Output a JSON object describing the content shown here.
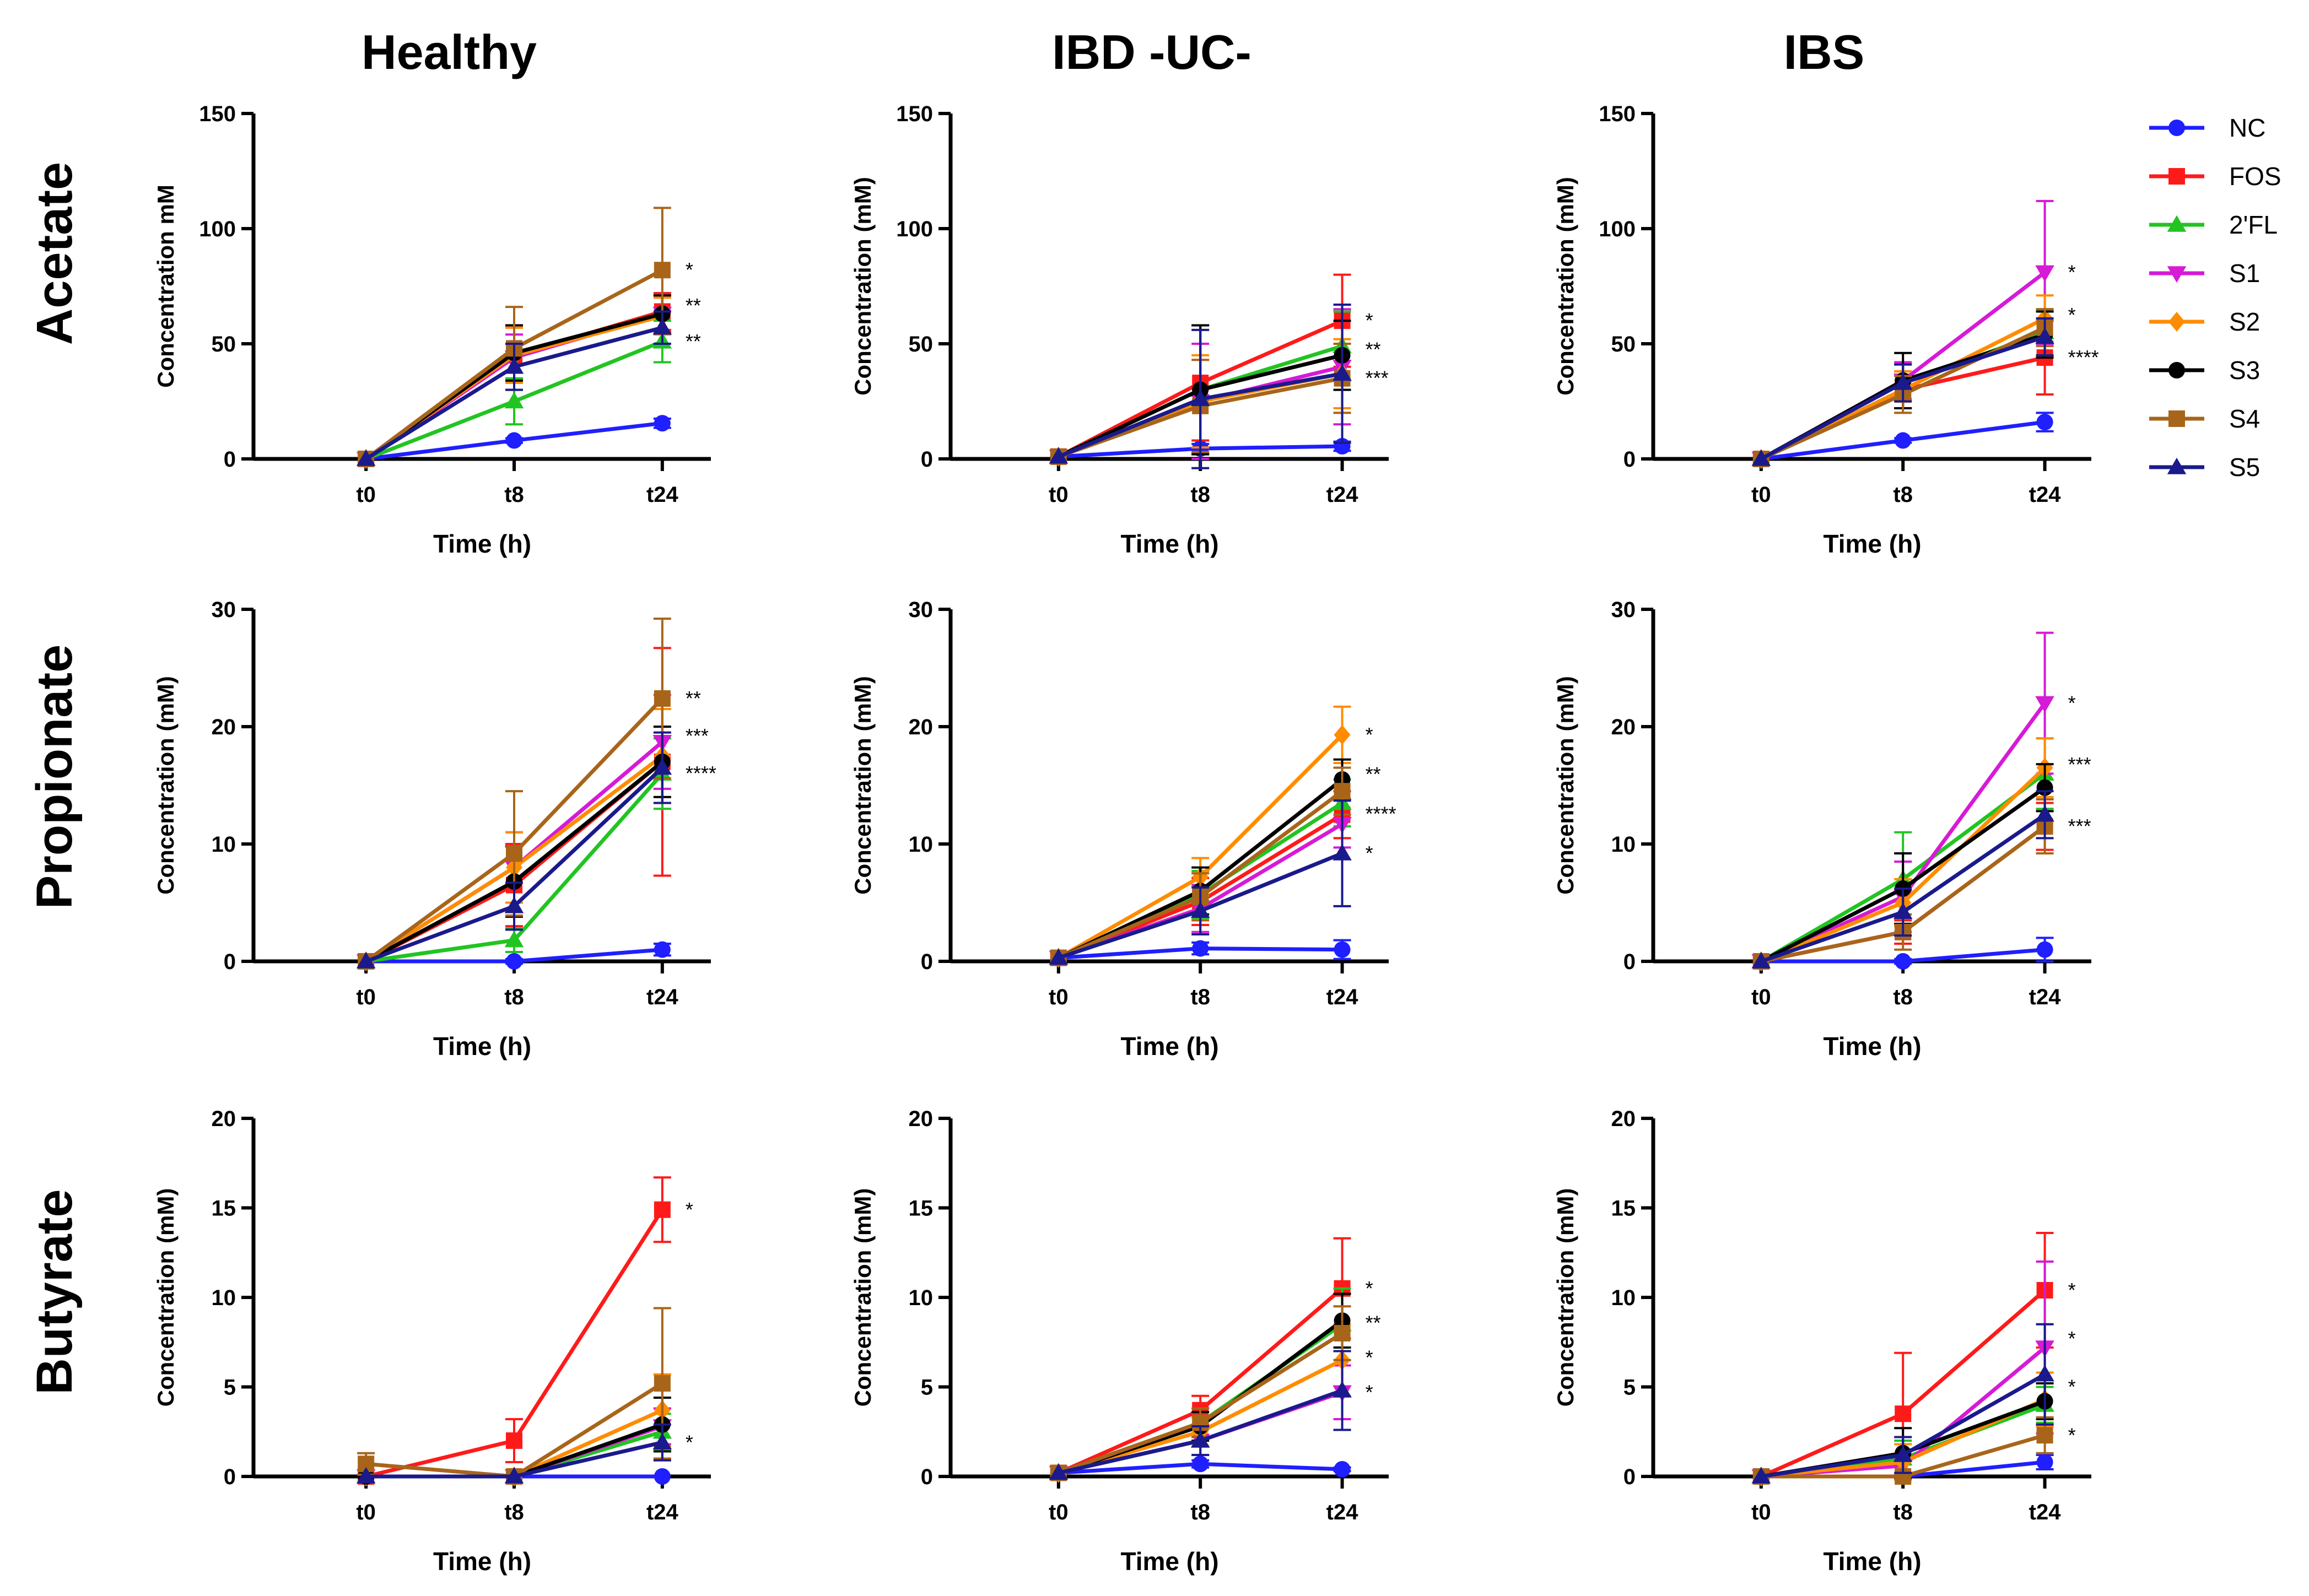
{
  "chart_data": {
    "type": "line",
    "columns": [
      "Healthy",
      "IBD -UC-",
      "IBS"
    ],
    "rows": [
      "Acetate",
      "Propionate",
      "Butyrate"
    ],
    "categories": [
      "t0",
      "t8",
      "t24"
    ],
    "xlabel": "Time (h)",
    "legend": {
      "placement": "right",
      "entries": [
        {
          "name": "NC",
          "color": "#1f1fff",
          "marker": "circle"
        },
        {
          "name": "FOS",
          "color": "#ff1a1a",
          "marker": "square"
        },
        {
          "name": "2'FL",
          "color": "#22c422",
          "marker": "triangle-up"
        },
        {
          "name": "S1",
          "color": "#d61ad6",
          "marker": "triangle-down"
        },
        {
          "name": "S2",
          "color": "#ff8c00",
          "marker": "diamond"
        },
        {
          "name": "S3",
          "color": "#000000",
          "marker": "circle"
        },
        {
          "name": "S4",
          "color": "#a8651a",
          "marker": "square"
        },
        {
          "name": "S5",
          "color": "#1a1a8c",
          "marker": "triangle-up"
        }
      ]
    },
    "panels": [
      {
        "row": 0,
        "col": 0,
        "ylabel": "Concentration mM",
        "ylim": [
          0,
          150
        ],
        "yticks": [
          0,
          50,
          100,
          150
        ],
        "series": {
          "NC": [
            0,
            8,
            15.5
          ],
          "FOS": [
            0,
            45,
            64
          ],
          "2'FL": [
            0,
            25,
            51
          ],
          "S1": [
            0,
            44,
            63
          ],
          "S2": [
            0,
            45,
            62
          ],
          "S3": [
            0,
            46,
            63
          ],
          "S4": [
            0,
            48,
            82
          ],
          "S5": [
            0,
            40,
            57
          ]
        },
        "errors": {
          "NC": [
            0,
            1,
            2
          ],
          "FOS": [
            0,
            12,
            8
          ],
          "2'FL": [
            0,
            10,
            9
          ],
          "S1": [
            0,
            10,
            8
          ],
          "S2": [
            0,
            12,
            8
          ],
          "S3": [
            0,
            12,
            8
          ],
          "S4": [
            0,
            18,
            27
          ],
          "S5": [
            0,
            10,
            7
          ]
        },
        "stars": [
          "*",
          "**",
          "**"
        ]
      },
      {
        "row": 0,
        "col": 1,
        "ylabel": "Concentration (mM)",
        "ylim": [
          0,
          150
        ],
        "yticks": [
          0,
          50,
          100,
          150
        ],
        "series": {
          "NC": [
            1,
            4.5,
            5.5
          ],
          "FOS": [
            1,
            33,
            60
          ],
          "2'FL": [
            1,
            30,
            49
          ],
          "S1": [
            1,
            25,
            40
          ],
          "S2": [
            1,
            25,
            37
          ],
          "S3": [
            1,
            30,
            45
          ],
          "S4": [
            1,
            23,
            35
          ],
          "S5": [
            1,
            26,
            37
          ]
        },
        "errors": {
          "NC": [
            0,
            2,
            2
          ],
          "FOS": [
            0,
            25,
            20
          ],
          "2'FL": [
            0,
            28,
            15
          ],
          "S1": [
            0,
            25,
            25
          ],
          "S2": [
            0,
            20,
            15
          ],
          "S3": [
            0,
            28,
            15
          ],
          "S4": [
            0,
            20,
            15
          ],
          "S5": [
            0,
            30,
            30
          ]
        },
        "stars": [
          "*",
          "**",
          "***"
        ]
      },
      {
        "row": 0,
        "col": 2,
        "ylabel": "Concentration (mM)",
        "ylim": [
          0,
          150
        ],
        "yticks": [
          0,
          50,
          100,
          150
        ],
        "series": {
          "NC": [
            0,
            8,
            16
          ],
          "FOS": [
            0,
            30,
            44
          ],
          "2'FL": [
            0,
            33,
            55
          ],
          "S1": [
            0,
            34,
            81
          ],
          "S2": [
            0,
            30,
            61
          ],
          "S3": [
            0,
            34,
            54
          ],
          "S4": [
            0,
            28,
            57
          ],
          "S5": [
            0,
            33,
            53
          ]
        },
        "errors": {
          "NC": [
            0,
            1,
            4
          ],
          "FOS": [
            0,
            8,
            16
          ],
          "2'FL": [
            0,
            8,
            10
          ],
          "S1": [
            0,
            8,
            31
          ],
          "S2": [
            0,
            8,
            10
          ],
          "S3": [
            0,
            12,
            10
          ],
          "S4": [
            0,
            8,
            8
          ],
          "S5": [
            0,
            8,
            8
          ]
        },
        "stars": [
          "*",
          "*",
          "****"
        ]
      },
      {
        "row": 1,
        "col": 0,
        "ylabel": "Concentration (mM)",
        "ylim": [
          0,
          30
        ],
        "yticks": [
          0,
          10,
          20,
          30
        ],
        "series": {
          "NC": [
            0,
            0,
            1
          ],
          "FOS": [
            0,
            6.5,
            17
          ],
          "2'FL": [
            0,
            1.8,
            16
          ],
          "S1": [
            0,
            8,
            18.7
          ],
          "S2": [
            0,
            8,
            17.5
          ],
          "S3": [
            0,
            6.8,
            17
          ],
          "S4": [
            0,
            9.2,
            22.4
          ],
          "S5": [
            0,
            4.7,
            16.5
          ]
        },
        "errors": {
          "NC": [
            0,
            0.2,
            0.5
          ],
          "FOS": [
            0,
            3.5,
            9.7
          ],
          "2'FL": [
            0,
            1,
            3
          ],
          "S1": [
            0,
            3,
            4
          ],
          "S2": [
            0,
            3,
            4
          ],
          "S3": [
            0,
            3,
            3
          ],
          "S4": [
            0,
            5.3,
            6.8
          ],
          "S5": [
            0,
            2,
            3
          ]
        },
        "stars": [
          "**",
          "***",
          "****"
        ]
      },
      {
        "row": 1,
        "col": 1,
        "ylabel": "Concentration (mM)",
        "ylim": [
          0,
          30
        ],
        "yticks": [
          0,
          10,
          20,
          30
        ],
        "series": {
          "NC": [
            0.3,
            1.1,
            1.0
          ],
          "FOS": [
            0.3,
            5.1,
            12.5
          ],
          "2'FL": [
            0.3,
            5.7,
            13.5
          ],
          "S1": [
            0.3,
            4.5,
            11.7
          ],
          "S2": [
            0.3,
            7.2,
            19.3
          ],
          "S3": [
            0.3,
            6.0,
            15.5
          ],
          "S4": [
            0.3,
            5.5,
            14.5
          ],
          "S5": [
            0.3,
            4.3,
            9.2
          ]
        },
        "errors": {
          "NC": [
            0,
            0.5,
            0.8
          ],
          "FOS": [
            0,
            2,
            2
          ],
          "2'FL": [
            0,
            2,
            2
          ],
          "S1": [
            0,
            2,
            2
          ],
          "S2": [
            0,
            1.6,
            2.4
          ],
          "S3": [
            0,
            2,
            1.7
          ],
          "S4": [
            0,
            2,
            2
          ],
          "S5": [
            0,
            2,
            4.5
          ]
        },
        "stars": [
          "*",
          "**",
          "****",
          "*"
        ]
      },
      {
        "row": 1,
        "col": 2,
        "ylabel": "Concentration (mM)",
        "ylim": [
          0,
          30
        ],
        "yticks": [
          0,
          10,
          20,
          30
        ],
        "series": {
          "NC": [
            0,
            0,
            1
          ],
          "FOS": [
            0,
            2.5,
            11.5
          ],
          "2'FL": [
            0,
            7,
            16
          ],
          "S1": [
            0,
            5.5,
            22
          ],
          "S2": [
            0,
            5,
            16.5
          ],
          "S3": [
            0,
            6.2,
            14.8
          ],
          "S4": [
            0,
            2.5,
            11.5
          ],
          "S5": [
            0,
            4.2,
            12.5
          ]
        },
        "errors": {
          "NC": [
            0,
            0.2,
            1
          ],
          "FOS": [
            0,
            1,
            2
          ],
          "2'FL": [
            0,
            4,
            3
          ],
          "S1": [
            0,
            3,
            6
          ],
          "S2": [
            0,
            2,
            2.5
          ],
          "S3": [
            0,
            3,
            2
          ],
          "S4": [
            0,
            1.5,
            2.3
          ],
          "S5": [
            0,
            2,
            2
          ]
        },
        "stars": [
          "*",
          "***",
          "***"
        ]
      },
      {
        "row": 2,
        "col": 0,
        "ylabel": "Concentration (mM)",
        "ylim": [
          0,
          20
        ],
        "yticks": [
          0,
          5,
          10,
          15,
          20
        ],
        "series": {
          "NC": [
            0,
            0,
            0
          ],
          "FOS": [
            0,
            2,
            14.9
          ],
          "2'FL": [
            0,
            0,
            2.5
          ],
          "S1": [
            0,
            0,
            2.8
          ],
          "S2": [
            0,
            0,
            3.7
          ],
          "S3": [
            0,
            0,
            2.9
          ],
          "S4": [
            0.7,
            0,
            5.2
          ],
          "S5": [
            0,
            0,
            1.9
          ]
        },
        "errors": {
          "NC": [
            0,
            0,
            0
          ],
          "FOS": [
            0,
            1.2,
            1.8
          ],
          "2'FL": [
            0,
            0,
            1
          ],
          "S1": [
            0,
            0,
            1
          ],
          "S2": [
            0,
            0,
            2
          ],
          "S3": [
            0,
            0,
            1.5
          ],
          "S4": [
            0.6,
            0,
            4.2
          ],
          "S5": [
            0,
            0,
            1
          ]
        },
        "stars": [
          "*",
          "*"
        ]
      },
      {
        "row": 2,
        "col": 1,
        "ylabel": "Concentration (mM)",
        "ylim": [
          0,
          20
        ],
        "yticks": [
          0,
          5,
          10,
          15,
          20
        ],
        "series": {
          "NC": [
            0.2,
            0.7,
            0.4
          ],
          "FOS": [
            0.2,
            3.7,
            10.5
          ],
          "2'FL": [
            0.2,
            3.0,
            8.5
          ],
          "S1": [
            0.2,
            2.0,
            4.7
          ],
          "S2": [
            0.2,
            2.5,
            6.5
          ],
          "S3": [
            0.2,
            2.8,
            8.7
          ],
          "S4": [
            0.2,
            3.0,
            8.0
          ],
          "S5": [
            0.2,
            2.0,
            4.8
          ]
        },
        "errors": {
          "NC": [
            0,
            0.2,
            0.1
          ],
          "FOS": [
            0,
            0.8,
            2.8
          ],
          "2'FL": [
            0,
            0.8,
            2
          ],
          "S1": [
            0,
            0.8,
            1.5
          ],
          "S2": [
            0,
            0.8,
            2
          ],
          "S3": [
            0,
            0.8,
            1.5
          ],
          "S4": [
            0,
            0.8,
            1.5
          ],
          "S5": [
            0,
            0.8,
            2.2
          ]
        },
        "stars": [
          "*",
          "**",
          "*",
          "*"
        ]
      },
      {
        "row": 2,
        "col": 2,
        "ylabel": "Concentration (mM)",
        "ylim": [
          0,
          20
        ],
        "yticks": [
          0,
          5,
          10,
          15,
          20
        ],
        "series": {
          "NC": [
            0,
            0,
            0.8
          ],
          "FOS": [
            0,
            3.5,
            10.4
          ],
          "2'FL": [
            0,
            1.0,
            4.0
          ],
          "S1": [
            0,
            0.6,
            7.2
          ],
          "S2": [
            0,
            0.8,
            4.3
          ],
          "S3": [
            0,
            1.3,
            4.2
          ],
          "S4": [
            0,
            0,
            2.3
          ],
          "S5": [
            0,
            1.2,
            5.7
          ]
        },
        "errors": {
          "NC": [
            0,
            0,
            0.4
          ],
          "FOS": [
            0,
            3.4,
            3.2
          ],
          "2'FL": [
            0,
            1,
            1
          ],
          "S1": [
            0,
            0.6,
            4.8
          ],
          "S2": [
            0,
            1,
            1.5
          ],
          "S3": [
            0,
            1.4,
            1
          ],
          "S4": [
            0,
            0,
            1
          ],
          "S5": [
            0,
            1,
            2.8
          ]
        },
        "stars": [
          "*",
          "*",
          "*",
          "*"
        ]
      }
    ]
  }
}
